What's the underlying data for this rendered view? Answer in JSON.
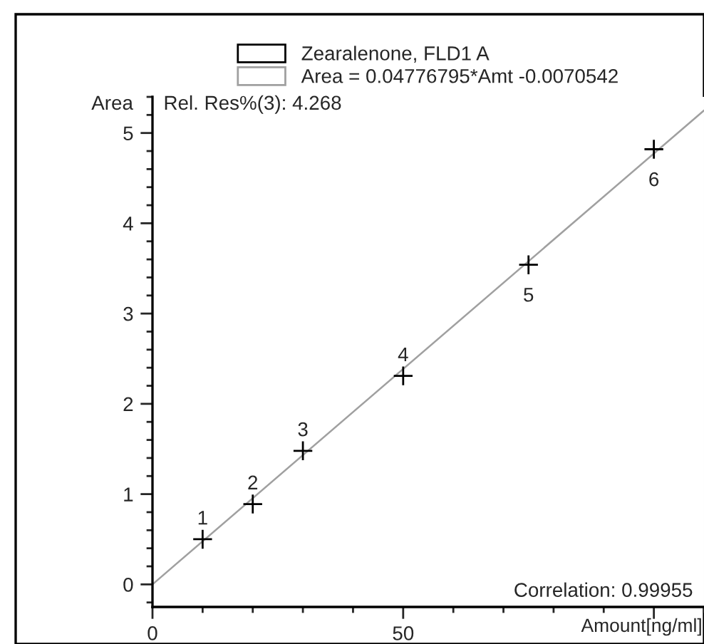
{
  "chart_data": {
    "type": "scatter",
    "xlabel": "Amount[ng/ml]",
    "ylabel": "Area",
    "series": [
      {
        "name": "Zearalenone, FLD1 A",
        "color": "#000000",
        "marker": "cross",
        "x": [
          10,
          20,
          30,
          50,
          75,
          100
        ],
        "values": [
          0.5,
          0.89,
          1.48,
          2.31,
          3.54,
          4.82
        ]
      },
      {
        "name": "Area = 0.04776795*Amt -0.0070542",
        "type": "line",
        "color": "#a0a0a0",
        "line_style": "solid",
        "x": [
          0,
          110
        ],
        "values": [
          0,
          5.25
        ]
      }
    ],
    "annotations": [
      {
        "text": "1",
        "x": 10,
        "y": 0.5
      },
      {
        "text": "2",
        "x": 20,
        "y": 0.89
      },
      {
        "text": "3",
        "x": 30,
        "y": 1.48
      },
      {
        "text": "4",
        "x": 50,
        "y": 2.31
      },
      {
        "text": "5",
        "x": 75,
        "y": 3.54
      },
      {
        "text": "6",
        "x": 100,
        "y": 4.82
      },
      "Rel. Res%(3): 4.268",
      "Correlation: 0.99955"
    ],
    "xlim": [
      0,
      110
    ],
    "ylim": [
      -0.25,
      5.4
    ],
    "xticks": [
      0,
      50,
      {
        "value": 100,
        "label": null
      }
    ],
    "yticks": [
      0,
      1,
      2,
      3,
      4,
      5
    ],
    "grid": false,
    "legend": "top"
  }
}
